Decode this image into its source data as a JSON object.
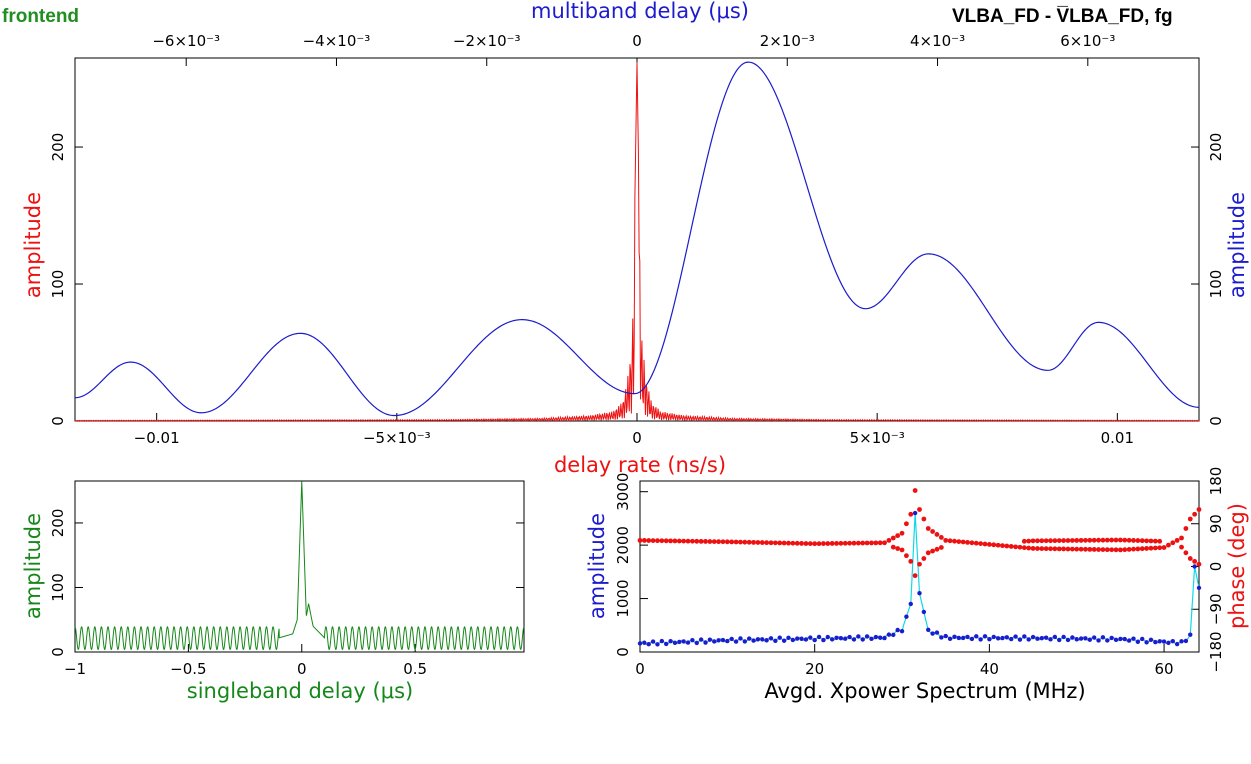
{
  "header": {
    "frontend_label": "frontend",
    "frontend_color": "#1f8f1f",
    "baseline_title": "VLBA_FD - V̅LBA_FD, fg"
  },
  "colors": {
    "red": "#ee1111",
    "blue": "#1c1ccc",
    "green": "#16881a",
    "cyan": "#10d8e8",
    "axis": "#000000"
  },
  "chart_data": [
    {
      "id": "delay-rate-and-multiband",
      "type": "line",
      "xlabel": "delay rate (ns/s)",
      "ylabel_left": "amplitude",
      "ylabel_right": "amplitude",
      "top_xlabel": "multiband delay (μs)",
      "xlim": [
        -0.0117,
        0.0117
      ],
      "ylim": [
        0,
        265
      ],
      "xticks": [
        {
          "v": -0.01,
          "label": "−0.01"
        },
        {
          "v": -0.005,
          "label": "−5×10⁻³"
        },
        {
          "v": 0,
          "label": "0"
        },
        {
          "v": 0.005,
          "label": "5×10⁻³"
        },
        {
          "v": 0.01,
          "label": "0.01"
        }
      ],
      "top_xlim": [
        -0.00748,
        0.00748
      ],
      "top_xticks": [
        {
          "v": -0.006,
          "label": "−6×10⁻³"
        },
        {
          "v": -0.004,
          "label": "−4×10⁻³"
        },
        {
          "v": -0.002,
          "label": "−2×10⁻³"
        },
        {
          "v": 0,
          "label": "0"
        },
        {
          "v": 0.002,
          "label": "2×10⁻³"
        },
        {
          "v": 0.004,
          "label": "4×10⁻³"
        },
        {
          "v": 0.006,
          "label": "6×10⁻³"
        }
      ],
      "yticks": [
        {
          "v": 0,
          "label": "0"
        },
        {
          "v": 100,
          "label": "100"
        },
        {
          "v": 200,
          "label": "200"
        }
      ],
      "series": [
        {
          "name": "delay rate amplitude",
          "color": "#ee1111",
          "x": [
            -0.0117,
            -0.004,
            -0.002,
            -0.001,
            -0.0005,
            -0.0003,
            -0.0002,
            -0.0001,
            -5e-05,
            0,
            5e-05,
            0.0001,
            0.0002,
            0.0003,
            0.0005,
            0.001,
            0.002,
            0.004,
            0.0117
          ],
          "y": [
            0.5,
            1,
            2,
            4,
            7,
            14,
            30,
            60,
            150,
            262,
            150,
            60,
            30,
            14,
            7,
            4,
            2,
            1,
            0.5
          ]
        },
        {
          "name": "multiband delay amplitude",
          "color": "#1c1ccc",
          "x": [
            -0.00748,
            -0.00674,
            -0.0058,
            -0.00448,
            -0.00323,
            -0.00153,
            -3e-05,
            0.00148,
            0.00304,
            0.00388,
            0.00547,
            0.00614,
            0.00748
          ],
          "y": [
            17,
            43,
            6,
            64,
            4,
            74,
            20,
            262,
            82,
            122,
            37,
            72,
            10
          ]
        }
      ]
    },
    {
      "id": "singleband-delay",
      "type": "line",
      "xlabel": "singleband delay (μs)",
      "ylabel": "amplitude",
      "xlim": [
        -1,
        0.98
      ],
      "ylim": [
        0,
        265
      ],
      "xticks": [
        {
          "v": -1,
          "label": "−1"
        },
        {
          "v": -0.5,
          "label": "−0.5"
        },
        {
          "v": 0,
          "label": "0"
        },
        {
          "v": 0.5,
          "label": "0.5"
        }
      ],
      "yticks": [
        {
          "v": 0,
          "label": "0"
        },
        {
          "v": 100,
          "label": "100"
        },
        {
          "v": 200,
          "label": "200"
        }
      ],
      "series": [
        {
          "name": "singleband amplitude",
          "color": "#16881a",
          "x": [
            -1,
            -0.1,
            -0.04,
            -0.02,
            0,
            0.02,
            0.03,
            0.05,
            0.1,
            0.98
          ],
          "y": [
            22,
            22,
            28,
            50,
            265,
            55,
            75,
            40,
            22,
            22
          ],
          "ripple_min": 4,
          "ripple_max": 39,
          "ripple_cycles": 68
        }
      ]
    },
    {
      "id": "xpower-spectrum",
      "type": "scatter",
      "xlabel": "Avgd. Xpower Spectrum (MHz)",
      "ylabel_left": "amplitude",
      "ylabel_right": "phase (deg)",
      "xlim": [
        0,
        64
      ],
      "ylim": [
        0,
        3200
      ],
      "y2lim": [
        -180,
        180
      ],
      "xticks": [
        {
          "v": 0,
          "label": "0"
        },
        {
          "v": 20,
          "label": "20"
        },
        {
          "v": 40,
          "label": "40"
        },
        {
          "v": 60,
          "label": "60"
        }
      ],
      "yticks": [
        {
          "v": 0,
          "label": "0"
        },
        {
          "v": 1000,
          "label": "1000"
        },
        {
          "v": 2000,
          "label": "2000"
        },
        {
          "v": 3000,
          "label": "3000"
        }
      ],
      "y2ticks": [
        {
          "v": -180,
          "label": "−180"
        },
        {
          "v": -90,
          "label": "−90"
        },
        {
          "v": 0,
          "label": "0"
        },
        {
          "v": 90,
          "label": "90"
        },
        {
          "v": 180,
          "label": "180"
        }
      ],
      "series": [
        {
          "name": "amplitude",
          "color": "#1c1ccc",
          "line_color": "#10d8e8",
          "x": [
            0,
            10,
            20,
            28,
            30,
            31,
            31.5,
            32,
            33,
            35,
            45,
            55,
            62,
            63,
            63.5,
            64
          ],
          "y": [
            160,
            220,
            250,
            270,
            420,
            900,
            2600,
            1100,
            400,
            270,
            260,
            240,
            170,
            300,
            1600,
            1200
          ]
        },
        {
          "name": "phase",
          "color": "#ee1111",
          "x": [
            0,
            10,
            20,
            28,
            30,
            31,
            31.5,
            32,
            33,
            35,
            45,
            55,
            60,
            62,
            63,
            64
          ],
          "y": [
            55,
            52,
            48,
            50,
            70,
            110,
            160,
            120,
            80,
            55,
            38,
            35,
            40,
            60,
            100,
            120
          ]
        }
      ]
    }
  ]
}
